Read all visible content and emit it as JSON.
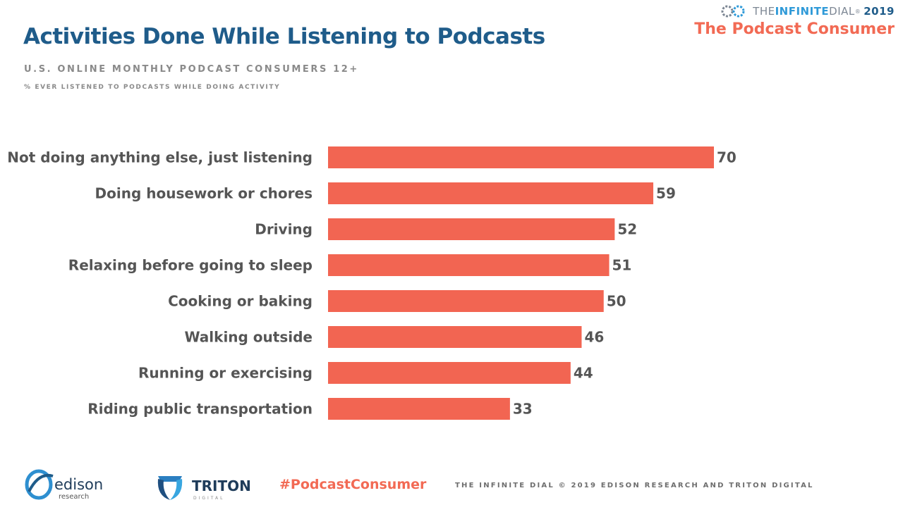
{
  "header": {
    "title": "Activities Done While Listening to Podcasts",
    "subtitle": "U.S. ONLINE MONTHLY PODCAST CONSUMERS 12+",
    "note": "% EVER LISTENED TO PODCASTS WHILE DOING ACTIVITY"
  },
  "brand": {
    "prefix": "THE ",
    "highlight": "INFINITE",
    "suffix": " DIAL",
    "trademark": "®",
    "year": "2019",
    "subtitle": "The Podcast Consumer"
  },
  "chart_data": {
    "type": "bar",
    "orientation": "horizontal",
    "categories": [
      "Not doing anything else, just listening",
      "Doing housework or chores",
      "Driving",
      "Relaxing before going to sleep",
      "Cooking or baking",
      "Walking outside",
      "Running or exercising",
      "Riding public transportation"
    ],
    "values": [
      70,
      59,
      52,
      51,
      50,
      46,
      44,
      33
    ],
    "bar_color": "#f26552",
    "data_labels": true,
    "grid": false,
    "legend": "none",
    "xlim": [
      0,
      70
    ]
  },
  "footer": {
    "edison": {
      "name": "edison",
      "sub": "research"
    },
    "triton": {
      "name": "TRITON",
      "sub": "DIGITAL"
    },
    "hashtag": "#PodcastConsumer",
    "copyright": "THE INFINITE DIAL   © 2019 EDISON RESEARCH AND TRITON DIGITAL"
  },
  "colors": {
    "title": "#1f5c8a",
    "accent": "#f26a54",
    "muted": "#8a8a8a"
  }
}
